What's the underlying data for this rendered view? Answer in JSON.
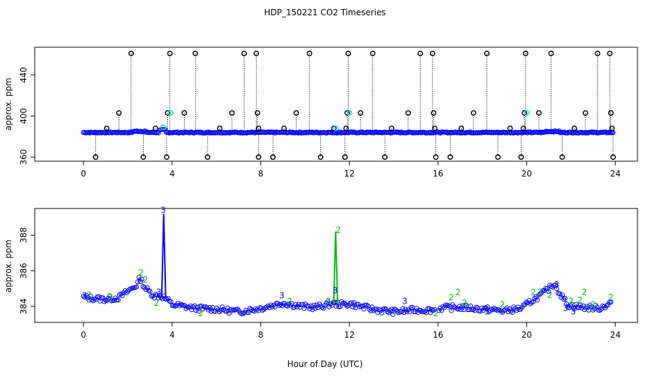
{
  "title": "HDP_150221  CO2 Timeseries",
  "xlabel": "Hour of Day (UTC)",
  "colors": {
    "blue": "#0000ff",
    "cyan": "#00e5ee",
    "green": "#00bb00",
    "black": "#000000"
  },
  "chart_data": [
    {
      "type": "scatter",
      "name": "raw",
      "ylabel": "approx. ppm",
      "xlim": [
        -2.2,
        25
      ],
      "ylim": [
        356,
        467
      ],
      "xticks": [
        0,
        4,
        8,
        12,
        16,
        20,
        24
      ],
      "xtick_labels": [
        "0",
        "4",
        "8",
        "12",
        "16",
        "20",
        "24"
      ],
      "yticks": [
        360,
        400,
        440
      ],
      "ytick_labels": [
        "360",
        "400",
        "440"
      ],
      "baseline": 384,
      "black_high": [
        {
          "x": 2.15,
          "y": 461
        },
        {
          "x": 3.9,
          "y": 461
        },
        {
          "x": 5.05,
          "y": 461
        },
        {
          "x": 7.25,
          "y": 461
        },
        {
          "x": 7.8,
          "y": 461
        },
        {
          "x": 10.2,
          "y": 461
        },
        {
          "x": 11.95,
          "y": 461
        },
        {
          "x": 13.05,
          "y": 461
        },
        {
          "x": 15.2,
          "y": 461
        },
        {
          "x": 15.75,
          "y": 461
        },
        {
          "x": 18.2,
          "y": 461
        },
        {
          "x": 19.95,
          "y": 461
        },
        {
          "x": 21.1,
          "y": 461
        },
        {
          "x": 23.2,
          "y": 461
        },
        {
          "x": 23.75,
          "y": 461
        }
      ],
      "black_400": [
        {
          "x": 1.6,
          "y": 403
        },
        {
          "x": 3.8,
          "y": 403
        },
        {
          "x": 4.55,
          "y": 403
        },
        {
          "x": 6.7,
          "y": 403
        },
        {
          "x": 7.85,
          "y": 403
        },
        {
          "x": 9.6,
          "y": 403
        },
        {
          "x": 11.9,
          "y": 403
        },
        {
          "x": 12.5,
          "y": 403
        },
        {
          "x": 14.65,
          "y": 403
        },
        {
          "x": 15.8,
          "y": 403
        },
        {
          "x": 17.6,
          "y": 403
        },
        {
          "x": 19.9,
          "y": 403
        },
        {
          "x": 20.55,
          "y": 403
        },
        {
          "x": 22.65,
          "y": 403
        },
        {
          "x": 23.8,
          "y": 403
        }
      ],
      "black_388": [
        {
          "x": 1.05,
          "y": 388
        },
        {
          "x": 3.25,
          "y": 388
        },
        {
          "x": 6.15,
          "y": 388
        },
        {
          "x": 7.9,
          "y": 388
        },
        {
          "x": 9.05,
          "y": 388
        },
        {
          "x": 11.3,
          "y": 388
        },
        {
          "x": 11.85,
          "y": 388
        },
        {
          "x": 13.9,
          "y": 388
        },
        {
          "x": 15.85,
          "y": 388
        },
        {
          "x": 17.05,
          "y": 388
        },
        {
          "x": 19.25,
          "y": 388
        },
        {
          "x": 19.85,
          "y": 388
        },
        {
          "x": 22.15,
          "y": 388
        },
        {
          "x": 23.85,
          "y": 388
        }
      ],
      "black_low": [
        {
          "x": 0.55,
          "y": 360
        },
        {
          "x": 2.7,
          "y": 360
        },
        {
          "x": 3.75,
          "y": 360
        },
        {
          "x": 5.6,
          "y": 360
        },
        {
          "x": 7.9,
          "y": 360
        },
        {
          "x": 8.55,
          "y": 360
        },
        {
          "x": 10.7,
          "y": 360
        },
        {
          "x": 11.8,
          "y": 360
        },
        {
          "x": 13.6,
          "y": 360
        },
        {
          "x": 15.9,
          "y": 360
        },
        {
          "x": 16.55,
          "y": 360
        },
        {
          "x": 18.7,
          "y": 360
        },
        {
          "x": 19.75,
          "y": 360
        },
        {
          "x": 21.6,
          "y": 360
        },
        {
          "x": 23.9,
          "y": 360
        }
      ],
      "cyan_points": [
        {
          "x": 3.95,
          "y": 403
        },
        {
          "x": 12.0,
          "y": 403
        },
        {
          "x": 20.0,
          "y": 403
        },
        {
          "x": 3.6,
          "y": 389
        },
        {
          "x": 11.4,
          "y": 388
        }
      ]
    },
    {
      "type": "scatter",
      "name": "detail",
      "ylabel": "approx. ppm",
      "xlim": [
        -2.2,
        25
      ],
      "ylim": [
        383.1,
        389.5
      ],
      "xticks": [
        0,
        4,
        8,
        12,
        16,
        20,
        24
      ],
      "xtick_labels": [
        "0",
        "4",
        "8",
        "12",
        "16",
        "20",
        "24"
      ],
      "yticks": [
        384,
        386,
        388
      ],
      "ytick_labels": [
        "384",
        "386",
        "388"
      ],
      "marker_labels": [
        "2",
        "3"
      ],
      "gap": [
        15.85,
        16.0
      ],
      "profile": [
        [
          0.0,
          384.5
        ],
        [
          0.5,
          384.45
        ],
        [
          1.0,
          384.4
        ],
        [
          1.6,
          384.5
        ],
        [
          2.0,
          384.85
        ],
        [
          2.4,
          385.2
        ],
        [
          2.55,
          385.6
        ],
        [
          2.8,
          385.0
        ],
        [
          3.2,
          384.6
        ],
        [
          3.5,
          384.6
        ],
        [
          3.75,
          384.4
        ],
        [
          4.0,
          384.1
        ],
        [
          5.0,
          383.9
        ],
        [
          6.0,
          383.85
        ],
        [
          7.0,
          383.7
        ],
        [
          8.0,
          383.9
        ],
        [
          9.0,
          384.2
        ],
        [
          9.8,
          384.0
        ],
        [
          10.5,
          383.95
        ],
        [
          11.2,
          384.15
        ],
        [
          11.6,
          384.1
        ],
        [
          12.0,
          384.15
        ],
        [
          13.0,
          383.85
        ],
        [
          14.0,
          383.7
        ],
        [
          15.0,
          383.8
        ],
        [
          15.85,
          383.8
        ],
        [
          16.0,
          383.9
        ],
        [
          17.0,
          383.95
        ],
        [
          18.0,
          383.85
        ],
        [
          19.0,
          383.75
        ],
        [
          19.8,
          383.9
        ],
        [
          20.2,
          384.3
        ],
        [
          20.6,
          384.6
        ],
        [
          21.0,
          385.0
        ],
        [
          21.25,
          385.3
        ],
        [
          21.5,
          384.7
        ],
        [
          21.9,
          384.05
        ],
        [
          22.5,
          383.95
        ],
        [
          23.3,
          383.9
        ],
        [
          23.8,
          384.2
        ]
      ],
      "spikes": [
        {
          "x": 3.62,
          "peak": 389.2,
          "label": "3",
          "color": "blue"
        },
        {
          "x": 11.38,
          "peak": 388.2,
          "label": "2",
          "color": "green"
        }
      ],
      "labels_3": [
        {
          "x": 0.05,
          "y": 384.6
        },
        {
          "x": 3.4,
          "y": 384.8
        },
        {
          "x": 3.6,
          "y": 389.4
        },
        {
          "x": 8.95,
          "y": 384.6
        },
        {
          "x": 11.35,
          "y": 384.9
        },
        {
          "x": 14.5,
          "y": 384.3
        },
        {
          "x": 18.2,
          "y": 383.7
        },
        {
          "x": 21.35,
          "y": 385.2
        },
        {
          "x": 21.75,
          "y": 383.9
        },
        {
          "x": 22.1,
          "y": 383.7
        }
      ],
      "labels_2": [
        {
          "x": 0.25,
          "y": 384.65
        },
        {
          "x": 1.2,
          "y": 384.55
        },
        {
          "x": 2.6,
          "y": 385.9
        },
        {
          "x": 2.8,
          "y": 385.5
        },
        {
          "x": 3.3,
          "y": 384.2
        },
        {
          "x": 5.3,
          "y": 383.6
        },
        {
          "x": 9.3,
          "y": 384.3
        },
        {
          "x": 11.05,
          "y": 384.3
        },
        {
          "x": 11.5,
          "y": 388.3
        },
        {
          "x": 15.9,
          "y": 383.6
        },
        {
          "x": 16.6,
          "y": 384.5
        },
        {
          "x": 16.9,
          "y": 384.8
        },
        {
          "x": 17.2,
          "y": 384.2
        },
        {
          "x": 18.9,
          "y": 384.1
        },
        {
          "x": 20.3,
          "y": 384.8
        },
        {
          "x": 20.6,
          "y": 384.8
        },
        {
          "x": 21.05,
          "y": 384.65
        },
        {
          "x": 22.0,
          "y": 384.3
        },
        {
          "x": 22.4,
          "y": 384.35
        },
        {
          "x": 22.6,
          "y": 384.8
        },
        {
          "x": 23.0,
          "y": 384.1
        },
        {
          "x": 23.8,
          "y": 384.5
        }
      ]
    }
  ]
}
